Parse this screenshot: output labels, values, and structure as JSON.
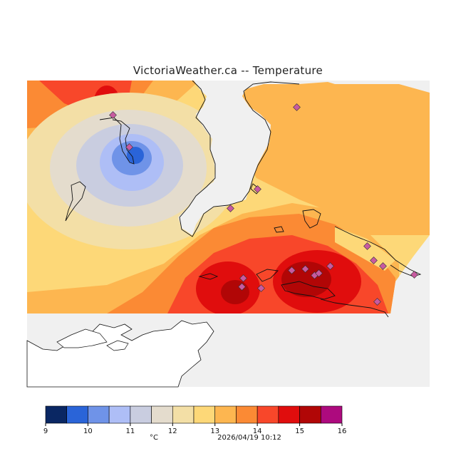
{
  "title": "VictoriaWeather.ca -- Temperature",
  "units": "°C",
  "timestamp": "2026/04/19 10:12",
  "legend": {
    "ticks": [
      "9",
      "10",
      "11",
      "12",
      "13",
      "14",
      "15",
      "16"
    ],
    "bins": [
      {
        "from": 9.0,
        "to": 9.5,
        "color": "#0a2763"
      },
      {
        "from": 9.5,
        "to": 10.0,
        "color": "#2a64d8"
      },
      {
        "from": 10.0,
        "to": 10.5,
        "color": "#6f93e8"
      },
      {
        "from": 10.5,
        "to": 11.0,
        "color": "#aebef6"
      },
      {
        "from": 11.0,
        "to": 11.5,
        "color": "#c9cde0"
      },
      {
        "from": 11.5,
        "to": 12.0,
        "color": "#e4dccd"
      },
      {
        "from": 12.0,
        "to": 12.5,
        "color": "#f3dfa6"
      },
      {
        "from": 12.5,
        "to": 13.0,
        "color": "#fdd878"
      },
      {
        "from": 13.0,
        "to": 13.5,
        "color": "#fdb650"
      },
      {
        "from": 13.5,
        "to": 14.0,
        "color": "#fb8a34"
      },
      {
        "from": 14.0,
        "to": 14.5,
        "color": "#f8472a"
      },
      {
        "from": 14.5,
        "to": 15.0,
        "color": "#e00d0d"
      },
      {
        "from": 15.0,
        "to": 15.5,
        "color": "#b10606"
      },
      {
        "from": 15.5,
        "to": 16.0,
        "color": "#ad0a7e"
      }
    ]
  },
  "colors": {
    "water": "#f0f0f0",
    "coast": "#111111",
    "station_marker": "#c85aa0"
  }
}
